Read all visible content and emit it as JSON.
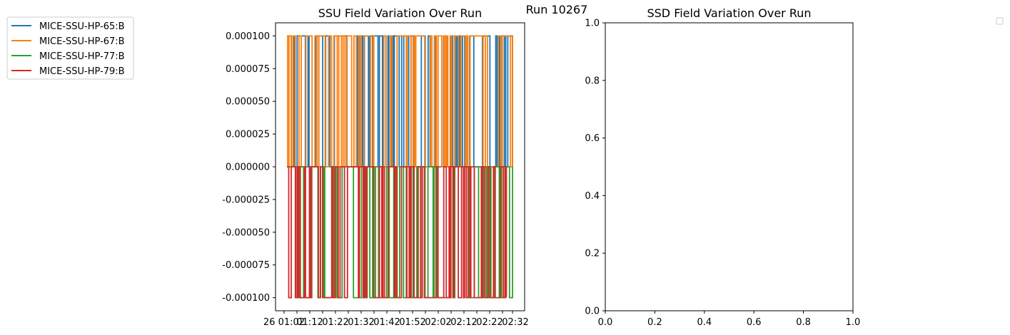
{
  "figure": {
    "suptitle": "Run 10267"
  },
  "colors": {
    "MICE-SSU-HP-65:B": "#1f77b4",
    "MICE-SSU-HP-67:B": "#ff7f0e",
    "MICE-SSU-HP-77:B": "#2ca02c",
    "MICE-SSU-HP-79:B": "#d62728"
  },
  "chart_data": [
    {
      "type": "line",
      "title": "SSU Field Variation Over Run",
      "xlabel": "",
      "ylabel": "",
      "xlim": [
        0,
        100
      ],
      "ylim": [
        -0.00011,
        0.00011
      ],
      "yticks": [
        "0.000100",
        "0.000075",
        "0.000050",
        "0.000025",
        "0.000000",
        "-0.000025",
        "-0.000050",
        "-0.000075",
        "-0.000100"
      ],
      "xtick_labels": [
        "26 01:02",
        "01:12",
        "01:22",
        "01:32",
        "01:42",
        "01:52",
        "02:02",
        "02:12",
        "02:22",
        "02:32"
      ],
      "legend": "outside-left",
      "series": [
        {
          "name": "MICE-SSU-HP-65:B",
          "values": [
            0.0001,
            0.0,
            0.0001
          ]
        },
        {
          "name": "MICE-SSU-HP-67:B",
          "values": [
            0.0001,
            0.0,
            0.0001
          ]
        },
        {
          "name": "MICE-SSU-HP-77:B",
          "values": [
            0.0,
            -0.0001,
            0.0
          ]
        },
        {
          "name": "MICE-SSU-HP-79:B",
          "values": [
            0.0,
            -0.0001,
            0.0
          ]
        }
      ]
    },
    {
      "type": "line",
      "title": "SSD Field Variation Over Run",
      "xlabel": "",
      "ylabel": "",
      "xlim": [
        0.0,
        1.0
      ],
      "ylim": [
        0.0,
        1.0
      ],
      "xticks": [
        "0.0",
        "0.2",
        "0.4",
        "0.6",
        "0.8",
        "1.0"
      ],
      "yticks": [
        "0.0",
        "0.2",
        "0.4",
        "0.6",
        "0.8",
        "1.0"
      ],
      "legend": "empty-top-right",
      "series": []
    }
  ]
}
